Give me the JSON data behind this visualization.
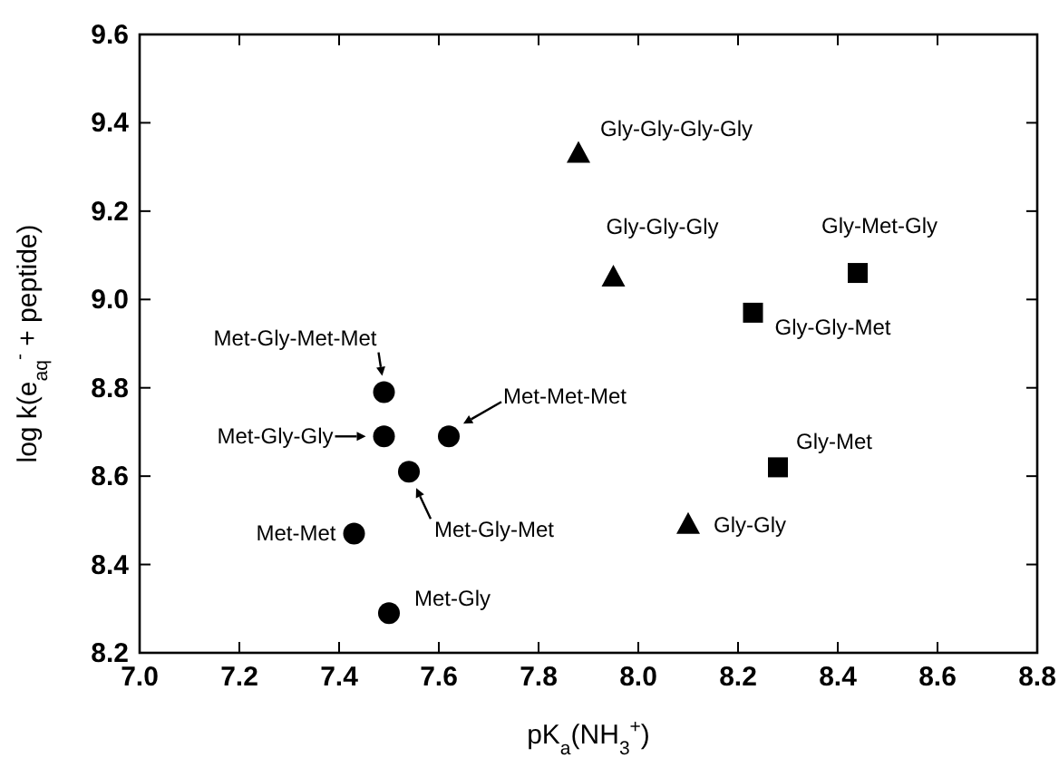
{
  "chart_data": {
    "type": "scatter",
    "xlabel": "pK$_{a}$(NH$_{3}$$^{+}$)",
    "ylabel": "log k(e$_{aq}$$^{-}$ + peptide)",
    "xlim": [
      7.0,
      8.8
    ],
    "xticks": [
      {
        "value": 7,
        "label": "7.0"
      },
      7.2,
      7.4,
      7.6,
      7.8,
      {
        "value": 8,
        "label": "8.0"
      },
      8.2,
      8.4,
      8.6,
      8.8
    ],
    "ylim": [
      8.2,
      9.6
    ],
    "yticks": [
      8.2,
      8.4,
      8.6,
      8.8,
      {
        "value": 9,
        "label": "9.0"
      },
      9.2,
      9.4,
      9.6
    ],
    "grid": false,
    "series": [
      {
        "color": "#000000",
        "marker": "circle",
        "x": [
          7.49,
          7.49,
          7.54,
          7.62,
          7.43,
          7.5
        ],
        "values": [
          8.79,
          8.69,
          8.61,
          8.69,
          8.47,
          8.29
        ]
      },
      {
        "color": "#000000",
        "marker": "triangle",
        "x": [
          7.88,
          7.95,
          8.1
        ],
        "values": [
          9.33,
          9.05,
          8.49
        ]
      },
      {
        "color": "#000000",
        "marker": "square",
        "x": [
          8.44,
          8.23,
          8.28
        ],
        "values": [
          9.06,
          8.97,
          8.62
        ]
      }
    ],
    "annotations": [
      {
        "text": "Met-Gly-Met-Met",
        "x": 7.49,
        "y": 8.79
      },
      {
        "text": "Met-Gly-Gly",
        "x": 7.49,
        "y": 8.69
      },
      {
        "text": "Met-Gly-Met",
        "x": 7.54,
        "y": 8.61
      },
      {
        "text": "Met-Met-Met",
        "x": 7.62,
        "y": 8.69
      },
      {
        "text": "Met-Met",
        "x": 7.43,
        "y": 8.47
      },
      {
        "text": "Met-Gly",
        "x": 7.5,
        "y": 8.29
      },
      {
        "text": "Gly-Gly-Gly-Gly",
        "x": 7.88,
        "y": 9.33
      },
      {
        "text": "Gly-Gly-Gly",
        "x": 7.95,
        "y": 9.05
      },
      {
        "text": "Gly-Gly",
        "x": 8.1,
        "y": 8.49
      },
      {
        "text": "Gly-Met-Gly",
        "x": 8.44,
        "y": 9.06
      },
      {
        "text": "Gly-Gly-Met",
        "x": 8.23,
        "y": 8.97
      },
      {
        "text": "Gly-Met",
        "x": 8.28,
        "y": 8.62
      }
    ]
  }
}
